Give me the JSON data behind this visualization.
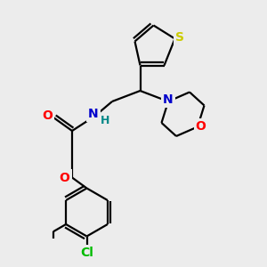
{
  "bg_color": "#ececec",
  "bond_color": "#000000",
  "bond_width": 1.6,
  "atoms": {
    "S": {
      "color": "#cccc00",
      "fontsize": 10,
      "fontweight": "bold"
    },
    "O": {
      "color": "#ff0000",
      "fontsize": 10,
      "fontweight": "bold"
    },
    "N": {
      "color": "#0000cc",
      "fontsize": 10,
      "fontweight": "bold"
    },
    "Cl": {
      "color": "#00bb00",
      "fontsize": 10,
      "fontweight": "bold"
    },
    "H": {
      "color": "#008888",
      "fontsize": 9,
      "fontweight": "bold"
    }
  },
  "figsize": [
    3.0,
    3.0
  ],
  "dpi": 100
}
